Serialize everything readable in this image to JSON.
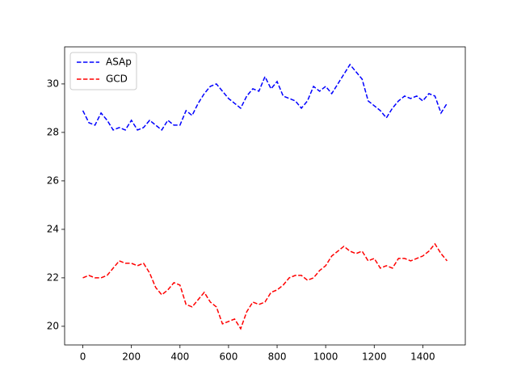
{
  "chart_data": {
    "type": "line",
    "x": [
      0,
      25,
      50,
      75,
      100,
      125,
      150,
      175,
      200,
      225,
      250,
      275,
      300,
      325,
      350,
      375,
      400,
      425,
      450,
      475,
      500,
      525,
      550,
      575,
      600,
      625,
      650,
      675,
      700,
      725,
      750,
      775,
      800,
      825,
      850,
      875,
      900,
      925,
      950,
      975,
      1000,
      1025,
      1050,
      1075,
      1100,
      1125,
      1150,
      1175,
      1200,
      1225,
      1250,
      1275,
      1300,
      1325,
      1350,
      1375,
      1400,
      1425,
      1450,
      1475,
      1500
    ],
    "series": [
      {
        "name": "ASAp",
        "color": "#0000ff",
        "values": [
          28.9,
          28.4,
          28.3,
          28.8,
          28.5,
          28.1,
          28.2,
          28.1,
          28.5,
          28.1,
          28.2,
          28.5,
          28.3,
          28.1,
          28.5,
          28.3,
          28.3,
          28.9,
          28.7,
          29.2,
          29.6,
          29.9,
          30.0,
          29.7,
          29.4,
          29.2,
          29.0,
          29.5,
          29.8,
          29.7,
          30.3,
          29.8,
          30.1,
          29.5,
          29.4,
          29.3,
          29.0,
          29.3,
          29.9,
          29.7,
          29.9,
          29.6,
          30.0,
          30.4,
          30.8,
          30.5,
          30.2,
          29.3,
          29.1,
          28.9,
          28.6,
          29.0,
          29.3,
          29.5,
          29.4,
          29.5,
          29.3,
          29.6,
          29.5,
          28.8,
          29.2
        ]
      },
      {
        "name": "GCD",
        "color": "#ff0000",
        "values": [
          22.0,
          22.1,
          22.0,
          22.0,
          22.1,
          22.4,
          22.7,
          22.6,
          22.6,
          22.5,
          22.6,
          22.2,
          21.6,
          21.3,
          21.5,
          21.8,
          21.7,
          20.9,
          20.8,
          21.1,
          21.4,
          21.0,
          20.8,
          20.1,
          20.2,
          20.3,
          19.9,
          20.6,
          21.0,
          20.9,
          21.0,
          21.4,
          21.5,
          21.7,
          22.0,
          22.1,
          22.1,
          21.9,
          22.0,
          22.3,
          22.5,
          22.9,
          23.1,
          23.3,
          23.1,
          23.0,
          23.1,
          22.7,
          22.8,
          22.4,
          22.5,
          22.4,
          22.8,
          22.8,
          22.7,
          22.8,
          22.9,
          23.1,
          23.4,
          23.0,
          22.7
        ]
      }
    ],
    "xlim": [
      -75,
      1575
    ],
    "ylim": [
      19.23,
      31.53
    ],
    "xticks": [
      0,
      200,
      400,
      600,
      800,
      1000,
      1200,
      1400
    ],
    "yticks": [
      20,
      22,
      24,
      26,
      28,
      30
    ],
    "legend": "upper left"
  }
}
